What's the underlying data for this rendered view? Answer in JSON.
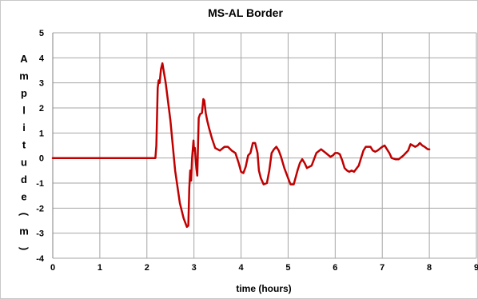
{
  "chart_data": {
    "type": "line",
    "title": "MS-AL Border",
    "xlabel": "time (hours)",
    "ylabel_chars": [
      "A",
      "m",
      "p",
      "l",
      "i",
      "t",
      "u",
      "d",
      "e",
      "(",
      "m",
      ")"
    ],
    "xlim": [
      0,
      9
    ],
    "ylim": [
      -4,
      5
    ],
    "x_ticks": [
      0,
      1,
      2,
      3,
      4,
      5,
      6,
      7,
      8,
      9
    ],
    "y_ticks": [
      5,
      4,
      3,
      2,
      1,
      0,
      -1,
      -2,
      -3,
      -4
    ],
    "grid": true,
    "line_color": "#c00000",
    "series": [
      {
        "x": [
          0,
          2.18,
          2.2,
          2.23,
          2.25,
          2.27,
          2.3,
          2.33,
          2.4,
          2.5,
          2.6,
          2.7,
          2.78,
          2.85,
          2.88,
          2.9,
          2.92,
          2.94,
          2.96,
          2.99,
          3.0,
          3.02,
          3.05,
          3.07,
          3.1,
          3.13,
          3.17,
          3.2,
          3.22,
          3.25,
          3.28,
          3.32,
          3.38,
          3.45,
          3.55,
          3.65,
          3.72,
          3.8,
          3.88,
          3.95,
          4.0,
          4.05,
          4.1,
          4.15,
          4.2,
          4.25,
          4.3,
          4.35,
          4.38,
          4.42,
          4.48,
          4.55,
          4.6,
          4.65,
          4.7,
          4.75,
          4.8,
          4.85,
          4.92,
          5.0,
          5.05,
          5.12,
          5.2,
          5.25,
          5.3,
          5.35,
          5.4,
          5.5,
          5.6,
          5.7,
          5.8,
          5.9,
          5.95,
          6.0,
          6.05,
          6.1,
          6.15,
          6.2,
          6.25,
          6.3,
          6.35,
          6.4,
          6.5,
          6.55,
          6.6,
          6.65,
          6.7,
          6.75,
          6.8,
          6.85,
          6.9,
          7.0,
          7.05,
          7.1,
          7.15,
          7.2,
          7.28,
          7.35,
          7.45,
          7.55,
          7.6,
          7.65,
          7.7,
          7.75,
          7.8,
          7.85,
          7.9,
          7.93,
          7.97,
          8.0
        ],
        "y": [
          0,
          0,
          0.5,
          2.8,
          3.1,
          3.0,
          3.55,
          3.78,
          3.0,
          1.5,
          -0.5,
          -1.8,
          -2.4,
          -2.75,
          -2.7,
          -1.2,
          -0.5,
          -0.9,
          0.0,
          0.7,
          0.3,
          0.4,
          -0.4,
          -0.7,
          1.6,
          1.75,
          1.8,
          2.35,
          2.3,
          1.8,
          1.5,
          1.2,
          0.8,
          0.4,
          0.3,
          0.45,
          0.45,
          0.3,
          0.2,
          -0.2,
          -0.55,
          -0.6,
          -0.35,
          0.1,
          0.2,
          0.6,
          0.6,
          0.2,
          -0.5,
          -0.8,
          -1.05,
          -1.0,
          -0.5,
          0.2,
          0.35,
          0.45,
          0.3,
          0.05,
          -0.4,
          -0.8,
          -1.05,
          -1.05,
          -0.5,
          -0.2,
          -0.05,
          -0.2,
          -0.4,
          -0.3,
          0.2,
          0.35,
          0.2,
          0.05,
          0.1,
          0.2,
          0.2,
          0.15,
          -0.1,
          -0.4,
          -0.5,
          -0.55,
          -0.5,
          -0.55,
          -0.3,
          0.0,
          0.3,
          0.45,
          0.45,
          0.45,
          0.3,
          0.25,
          0.3,
          0.45,
          0.5,
          0.35,
          0.2,
          0.0,
          -0.05,
          -0.05,
          0.1,
          0.3,
          0.55,
          0.5,
          0.45,
          0.5,
          0.6,
          0.5,
          0.45,
          0.4,
          0.35,
          0.35
        ]
      }
    ]
  }
}
